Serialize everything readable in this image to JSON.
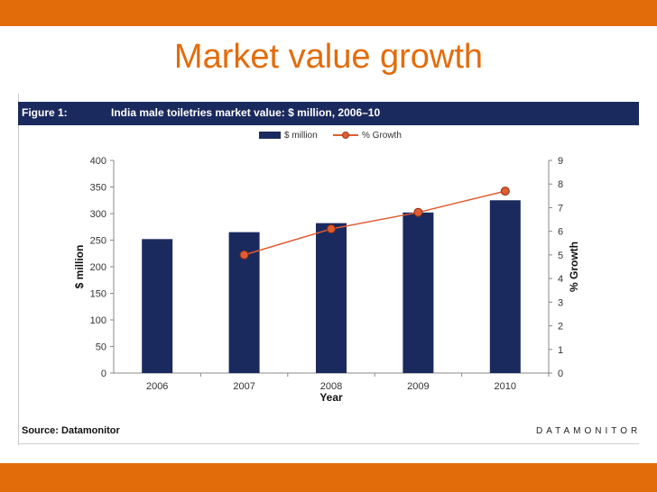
{
  "slide": {
    "title": "Market value growth"
  },
  "figure": {
    "label": "Figure 1:",
    "title": "India male toiletries market value: $ million, 2006–10",
    "source": "Source: Datamonitor",
    "brand": "DATAMONITOR"
  },
  "colors": {
    "bars": "#1b2a5e",
    "line": "#e05c33",
    "accent": "#e36c0a"
  },
  "chart_data": {
    "type": "bar",
    "categories": [
      "2006",
      "2007",
      "2008",
      "2009",
      "2010"
    ],
    "series": [
      {
        "name": "$ million",
        "type": "bar",
        "axis": "left",
        "values": [
          252,
          265,
          282,
          302,
          325
        ]
      },
      {
        "name": "% Growth",
        "type": "line",
        "axis": "right",
        "values": [
          null,
          5.0,
          6.1,
          6.8,
          7.7
        ]
      }
    ],
    "xlabel": "Year",
    "ylabel": "$ million",
    "y2label": "% Growth",
    "ylim": [
      0,
      400
    ],
    "y2lim": [
      0,
      9
    ],
    "yticks": [
      "0",
      "50",
      "100",
      "150",
      "200",
      "250",
      "300",
      "350",
      "400"
    ],
    "y2ticks": [
      "0",
      "1",
      "2",
      "3",
      "4",
      "5",
      "6",
      "7",
      "8",
      "9"
    ],
    "legend": "top-center",
    "grid": false
  }
}
